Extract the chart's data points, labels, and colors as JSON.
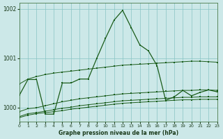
{
  "xlabel": "Graphe pression niveau de la mer (hPa)",
  "bg_color": "#cce8e8",
  "line_color": "#1a5c1a",
  "grid_color": "#88c4c4",
  "xlim": [
    0,
    23
  ],
  "ylim": [
    999.72,
    1002.12
  ],
  "yticks": [
    1000,
    1001,
    1002
  ],
  "xticks": [
    0,
    1,
    2,
    3,
    4,
    5,
    6,
    7,
    8,
    9,
    10,
    11,
    12,
    13,
    14,
    15,
    16,
    17,
    18,
    19,
    20,
    21,
    22,
    23
  ],
  "series": [
    {
      "x": [
        0,
        1,
        2,
        3,
        4,
        5,
        6,
        7,
        8,
        9,
        10,
        11,
        12,
        13,
        14,
        15,
        16,
        17,
        18,
        19,
        20,
        21,
        22,
        23
      ],
      "y": [
        1000.48,
        1000.58,
        1000.63,
        1000.67,
        1000.7,
        1000.72,
        1000.74,
        1000.76,
        1000.78,
        1000.8,
        1000.82,
        1000.84,
        1000.86,
        1000.87,
        1000.88,
        1000.89,
        1000.9,
        1000.91,
        1000.92,
        1000.93,
        1000.94,
        1000.94,
        1000.93,
        1000.92
      ]
    },
    {
      "x": [
        0,
        1,
        2,
        3,
        4,
        5,
        6,
        7,
        8,
        9,
        10,
        11,
        12,
        13,
        14,
        15,
        16,
        17,
        18,
        19,
        20,
        21,
        22,
        23
      ],
      "y": [
        999.92,
        999.98,
        1000.0,
        1000.04,
        1000.08,
        1000.12,
        1000.15,
        1000.18,
        1000.2,
        1000.22,
        1000.24,
        1000.26,
        1000.28,
        1000.29,
        1000.3,
        1000.31,
        1000.32,
        1000.33,
        1000.34,
        1000.35,
        1000.35,
        1000.36,
        1000.36,
        1000.35
      ]
    },
    {
      "x": [
        0,
        1,
        2,
        3,
        4,
        5,
        6,
        7,
        8,
        9,
        10,
        11,
        12,
        13,
        14,
        15,
        16,
        17,
        18,
        19,
        20,
        21,
        22,
        23
      ],
      "y": [
        999.82,
        999.88,
        999.9,
        999.93,
        999.96,
        999.99,
        1000.01,
        1000.04,
        1000.06,
        1000.08,
        1000.1,
        1000.12,
        1000.14,
        1000.15,
        1000.16,
        1000.17,
        1000.18,
        1000.19,
        1000.2,
        1000.21,
        1000.21,
        1000.22,
        1000.22,
        1000.22
      ]
    },
    {
      "x": [
        0,
        1,
        2,
        3,
        4,
        5,
        6,
        7,
        8,
        9,
        10,
        11,
        12,
        13,
        14,
        15,
        16,
        17,
        18,
        19,
        20,
        21,
        22,
        23
      ],
      "y": [
        999.8,
        999.85,
        999.88,
        999.9,
        999.92,
        999.94,
        999.97,
        999.99,
        1000.01,
        1000.03,
        1000.05,
        1000.07,
        1000.09,
        1000.1,
        1000.11,
        1000.12,
        1000.13,
        1000.14,
        1000.15,
        1000.16,
        1000.16,
        1000.17,
        1000.17,
        1000.17
      ]
    },
    {
      "x": [
        0,
        1,
        2,
        3,
        4,
        5,
        6,
        7,
        8,
        9,
        10,
        11,
        12,
        13,
        14,
        15,
        16,
        17,
        18,
        19,
        20,
        21,
        22,
        23
      ],
      "y": [
        1000.25,
        1000.57,
        1000.57,
        999.87,
        999.87,
        1000.5,
        1000.5,
        1000.58,
        1000.58,
        1001.0,
        1001.4,
        1001.77,
        1001.97,
        1001.62,
        1001.27,
        1001.15,
        1000.85,
        1000.15,
        1000.22,
        1000.35,
        1000.24,
        1000.31,
        1000.36,
        1000.32
      ]
    }
  ]
}
